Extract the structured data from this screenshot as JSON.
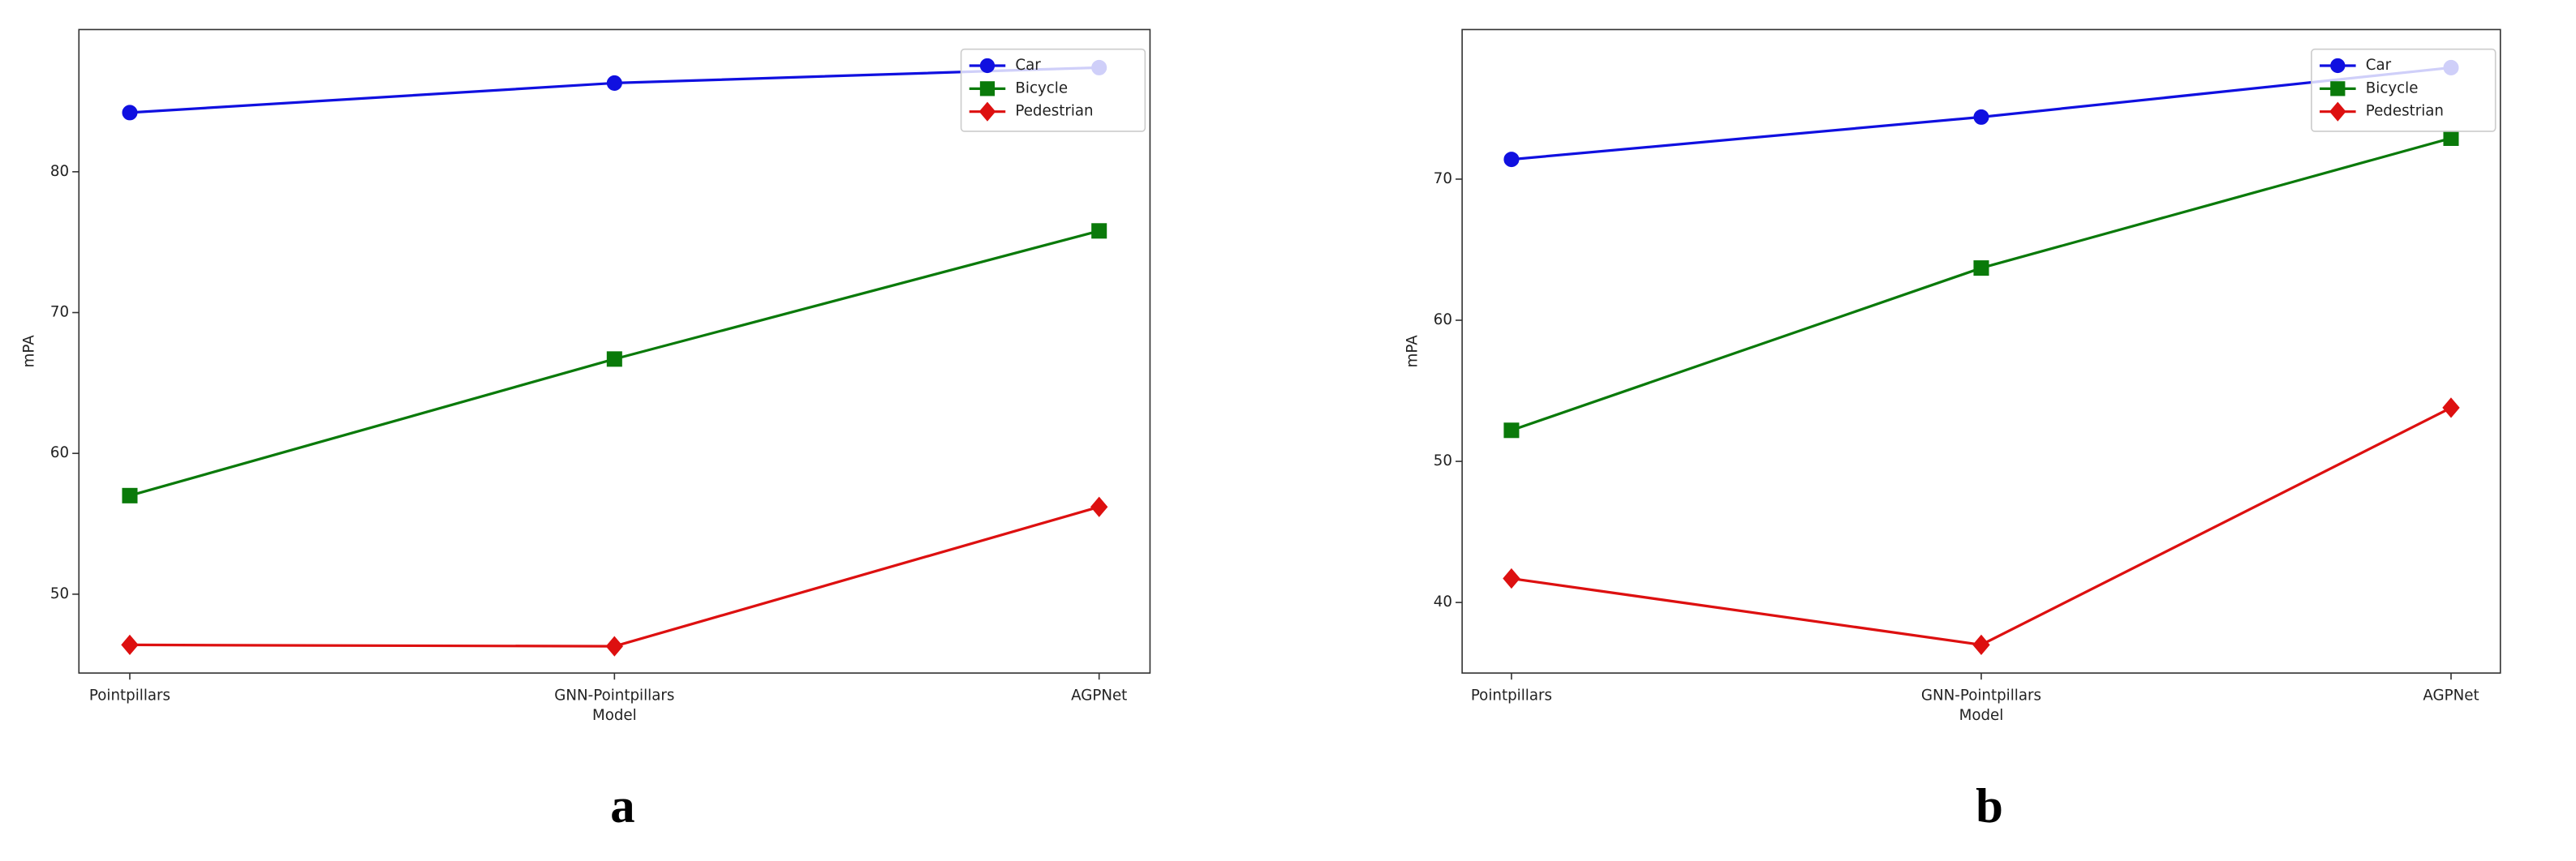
{
  "chart_data": [
    {
      "type": "line",
      "caption": "a",
      "xlabel": "Model",
      "ylabel": "mPA",
      "categories": [
        "Pointpillars",
        "GNN-Pointpillars",
        "AGPNet"
      ],
      "ylim": [
        44.4,
        90.1
      ],
      "yticks": [
        50,
        60,
        70,
        80
      ],
      "legend": "upper right",
      "series": [
        {
          "name": "Car",
          "color": "#1010e0",
          "marker": "circle",
          "values": [
            84.2,
            86.3,
            87.4
          ]
        },
        {
          "name": "Bicycle",
          "color": "#0a7a0a",
          "marker": "square",
          "values": [
            57.0,
            66.7,
            75.8
          ]
        },
        {
          "name": "Pedestrian",
          "color": "#dd1010",
          "marker": "diamond",
          "values": [
            46.4,
            46.3,
            56.2
          ]
        }
      ]
    },
    {
      "type": "line",
      "caption": "b",
      "xlabel": "Model",
      "ylabel": "mPA",
      "categories": [
        "Pointpillars",
        "GNN-Pointpillars",
        "AGPNet"
      ],
      "ylim": [
        35.0,
        80.6
      ],
      "yticks": [
        40,
        50,
        60,
        70
      ],
      "legend": "upper right",
      "series": [
        {
          "name": "Car",
          "color": "#1010e0",
          "marker": "circle",
          "values": [
            71.4,
            74.4,
            77.9
          ]
        },
        {
          "name": "Bicycle",
          "color": "#0a7a0a",
          "marker": "square",
          "values": [
            52.2,
            63.7,
            72.9
          ]
        },
        {
          "name": "Pedestrian",
          "color": "#dd1010",
          "marker": "diamond",
          "values": [
            41.7,
            37.0,
            53.8
          ]
        }
      ]
    }
  ]
}
